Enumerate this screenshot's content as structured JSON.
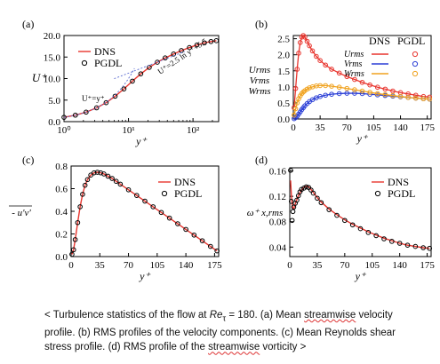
{
  "figure": {
    "panels": [
      "(a)",
      "(b)",
      "(c)",
      "(d)"
    ]
  },
  "caption": {
    "open": "< ",
    "p1": "Turbulence statistics of the flow at ",
    "re_symbol": "Re",
    "re_sub": "τ",
    "p2": " = 180. (a) Mean ",
    "streamwise": "streamwise",
    "p3": " velocity profile. (b) RMS profiles of the velocity components. (c) Mean Reynolds shear stress profile. (d) RMS profile of the ",
    "streamwise2": "streamwise",
    "p4": " vorticity ",
    "close": ">"
  },
  "colors": {
    "dns_red": "#e8352e",
    "v_blue": "#2b3fd6",
    "w_orange": "#f0a21e",
    "marker_black": "#000000",
    "fit_line": "#5a6bd0"
  },
  "chart_data": [
    {
      "id": "a",
      "type": "line",
      "xscale": "log",
      "xlim": [
        1,
        250
      ],
      "ylim": [
        0,
        20
      ],
      "xticks": [
        1,
        10,
        100
      ],
      "xticklabels": [
        "10⁰",
        "10¹",
        "10²"
      ],
      "yticks": [
        0,
        5,
        10,
        15,
        20
      ],
      "yticklabels": [
        "0.0",
        "5.0",
        "10.0",
        "15.0",
        "20.0"
      ],
      "ylabel": "U⁺",
      "xlabel": "y⁺",
      "legend": [
        "DNS",
        "PGDL"
      ],
      "legend_position": "top-left",
      "annotations": [
        "U⁺=y⁺",
        "U⁺=2.5 ln y⁺+5.5"
      ],
      "x": [
        1.0,
        1.5,
        2.2,
        3.2,
        4.5,
        6.2,
        8.5,
        11.5,
        15.5,
        21,
        28,
        37,
        50,
        66,
        88,
        115,
        150,
        190,
        230
      ],
      "series": [
        {
          "name": "DNS",
          "values": [
            1.0,
            1.5,
            2.2,
            3.2,
            4.4,
            5.9,
            7.6,
            9.4,
            11.1,
            12.6,
            13.8,
            14.8,
            15.7,
            16.5,
            17.2,
            17.8,
            18.3,
            18.6,
            18.8
          ]
        },
        {
          "name": "PGDL",
          "values": [
            1.0,
            1.5,
            2.2,
            3.2,
            4.4,
            5.9,
            7.6,
            9.4,
            11.1,
            12.6,
            13.8,
            14.8,
            15.7,
            16.5,
            17.2,
            17.8,
            18.3,
            18.6,
            18.8
          ]
        }
      ]
    },
    {
      "id": "b",
      "type": "line",
      "xlim": [
        0,
        180
      ],
      "ylim": [
        0,
        2.6
      ],
      "xticks": [
        0,
        35,
        70,
        105,
        140,
        175
      ],
      "yticks": [
        0,
        0.5,
        1.0,
        1.5,
        2.0,
        2.5
      ],
      "yticklabels": [
        "0.0",
        "0.5",
        "1.0",
        "1.5",
        "2.0",
        "2.5"
      ],
      "ylabel": [
        "Urms",
        "Vrms",
        "Wrms"
      ],
      "xlabel": "y⁺",
      "legend_headers": [
        "DNS",
        "PGDL"
      ],
      "legend_position": "top-right",
      "x": [
        1,
        3,
        5,
        7,
        9,
        11,
        13,
        15,
        18,
        21,
        25,
        30,
        35,
        42,
        50,
        60,
        70,
        80,
        90,
        100,
        110,
        120,
        130,
        140,
        150,
        160,
        170,
        178
      ],
      "series": [
        {
          "name": "Urms",
          "values": [
            0.35,
            0.95,
            1.55,
            2.05,
            2.38,
            2.55,
            2.6,
            2.55,
            2.42,
            2.28,
            2.12,
            1.95,
            1.82,
            1.68,
            1.55,
            1.43,
            1.32,
            1.23,
            1.14,
            1.06,
            0.99,
            0.93,
            0.87,
            0.82,
            0.78,
            0.74,
            0.7,
            0.68
          ]
        },
        {
          "name": "Vrms",
          "values": [
            0.01,
            0.04,
            0.09,
            0.15,
            0.22,
            0.29,
            0.35,
            0.41,
            0.48,
            0.54,
            0.6,
            0.66,
            0.7,
            0.74,
            0.77,
            0.79,
            0.8,
            0.8,
            0.79,
            0.77,
            0.75,
            0.73,
            0.71,
            0.69,
            0.67,
            0.65,
            0.63,
            0.62
          ]
        },
        {
          "name": "Wrms",
          "values": [
            0.12,
            0.32,
            0.5,
            0.63,
            0.72,
            0.79,
            0.84,
            0.88,
            0.93,
            0.97,
            1.0,
            1.03,
            1.04,
            1.04,
            1.02,
            0.99,
            0.95,
            0.91,
            0.87,
            0.83,
            0.79,
            0.76,
            0.73,
            0.7,
            0.67,
            0.65,
            0.63,
            0.62
          ]
        }
      ]
    },
    {
      "id": "c",
      "type": "line",
      "xlim": [
        0,
        180
      ],
      "ylim": [
        0,
        0.8
      ],
      "xticks": [
        0,
        35,
        70,
        105,
        140,
        175
      ],
      "yticks": [
        0,
        0.2,
        0.4,
        0.6,
        0.8
      ],
      "yticklabels": [
        "0.0",
        "0.2",
        "0.4",
        "0.6",
        "0.8"
      ],
      "ylabel": "- u'v'",
      "xlabel": "y⁺",
      "legend": [
        "DNS",
        "PGDL"
      ],
      "legend_position": "top-right",
      "x": [
        1,
        3,
        5,
        8,
        11,
        14,
        17,
        20,
        24,
        28,
        32,
        36,
        40,
        45,
        50,
        55,
        60,
        70,
        80,
        90,
        100,
        110,
        120,
        130,
        140,
        150,
        160,
        170,
        178
      ],
      "series": [
        {
          "name": "DNS",
          "values": [
            0.02,
            0.06,
            0.15,
            0.3,
            0.44,
            0.55,
            0.63,
            0.68,
            0.72,
            0.74,
            0.745,
            0.74,
            0.73,
            0.71,
            0.69,
            0.665,
            0.64,
            0.59,
            0.54,
            0.49,
            0.44,
            0.39,
            0.34,
            0.29,
            0.24,
            0.19,
            0.14,
            0.09,
            0.05
          ]
        },
        {
          "name": "PGDL",
          "values": [
            0.02,
            0.06,
            0.15,
            0.3,
            0.44,
            0.55,
            0.63,
            0.68,
            0.72,
            0.74,
            0.745,
            0.74,
            0.73,
            0.71,
            0.69,
            0.665,
            0.64,
            0.59,
            0.54,
            0.49,
            0.44,
            0.39,
            0.34,
            0.29,
            0.24,
            0.19,
            0.14,
            0.09,
            0.05
          ]
        }
      ]
    },
    {
      "id": "d",
      "type": "line",
      "xlim": [
        0,
        180
      ],
      "ylim": [
        0.025,
        0.165
      ],
      "xticks": [
        0,
        35,
        70,
        105,
        140,
        175
      ],
      "yticks": [
        0.04,
        0.08,
        0.12,
        0.16
      ],
      "yticklabels": [
        "0.04",
        "0.08",
        "0.12",
        "0.16"
      ],
      "ylabel": "ω⁺ x,rms",
      "xlabel": "y⁺",
      "legend": [
        "DNS",
        "PGDL"
      ],
      "legend_position": "top-right",
      "x": [
        1,
        2,
        3,
        4,
        5,
        7,
        9,
        11,
        13,
        15,
        18,
        21,
        24,
        27,
        30,
        35,
        40,
        50,
        60,
        70,
        80,
        90,
        100,
        110,
        120,
        130,
        140,
        150,
        160,
        170,
        178
      ],
      "series": [
        {
          "name": "DNS",
          "values": [
            0.145,
            0.123,
            0.108,
            0.1,
            0.1,
            0.108,
            0.115,
            0.121,
            0.126,
            0.13,
            0.134,
            0.136,
            0.135,
            0.131,
            0.126,
            0.118,
            0.111,
            0.1,
            0.091,
            0.083,
            0.076,
            0.07,
            0.064,
            0.059,
            0.054,
            0.05,
            0.046,
            0.043,
            0.041,
            0.039,
            0.038
          ]
        },
        {
          "name": "PGDL",
          "values": [
            0.161,
            0.112,
            0.082,
            0.096,
            0.103,
            0.109,
            0.114,
            0.121,
            0.127,
            0.131,
            0.133,
            0.135,
            0.134,
            0.13,
            0.125,
            0.117,
            0.11,
            0.099,
            0.09,
            0.082,
            0.075,
            0.069,
            0.063,
            0.058,
            0.053,
            0.049,
            0.046,
            0.043,
            0.041,
            0.039,
            0.038
          ]
        }
      ]
    }
  ]
}
